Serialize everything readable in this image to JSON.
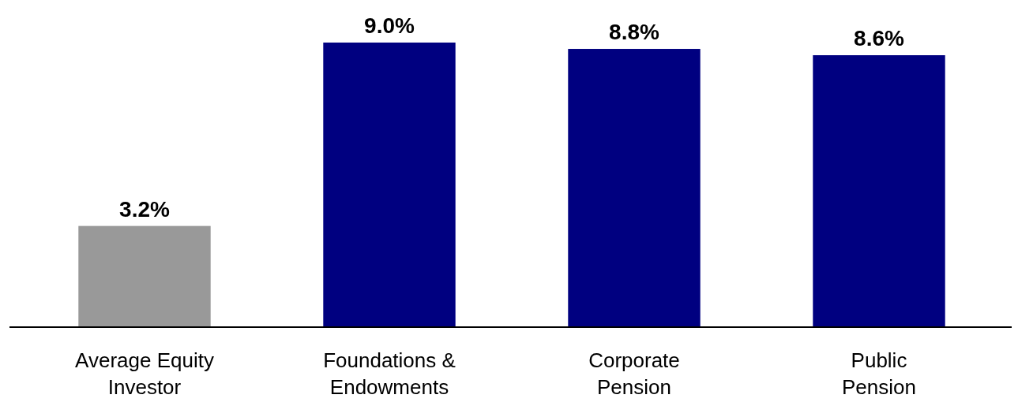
{
  "chart_data": {
    "type": "bar",
    "categories": [
      "Average Equity Investor",
      "Foundations & Endowments",
      "Corporate Pension",
      "Public Pension"
    ],
    "values": [
      3.2,
      9.0,
      8.8,
      8.6
    ],
    "colors": [
      "#999999",
      "#000080",
      "#000080",
      "#000080"
    ],
    "value_labels": [
      "3.2%",
      "9.0%",
      "8.8%",
      "8.6%"
    ]
  }
}
